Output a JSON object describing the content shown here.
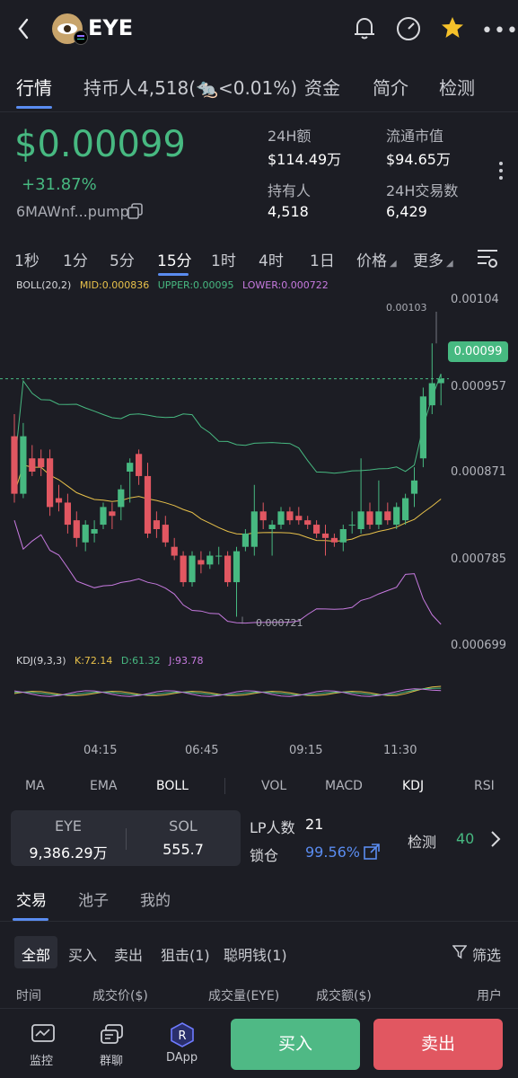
{
  "header": {
    "title": "EYE"
  },
  "tabs": [
    {
      "label": "行情"
    },
    {
      "label": "持币人4,518("
    },
    {
      "label": "<0.01%)"
    },
    {
      "label": "资金"
    },
    {
      "label": "简介"
    },
    {
      "label": "检测"
    }
  ],
  "token": {
    "price": "$0.00099",
    "change": "+31.87%",
    "address": "6MAWnf...pump"
  },
  "stats": {
    "vol24h_label": "24H额",
    "vol24h_value": "$114.49万",
    "mcap_label": "流通市值",
    "mcap_value": "$94.65万",
    "holders_label": "持有人",
    "holders_value": "4,518",
    "tx24h_label": "24H交易数",
    "tx24h_value": "6,429"
  },
  "intervals": [
    "1秒",
    "1分",
    "5分",
    "15分",
    "1时",
    "4时",
    "1日",
    "价格",
    "更多"
  ],
  "boll": {
    "name": "BOLL(20,2)",
    "mid": "MID:0.000836",
    "upper": "UPPER:0.00095",
    "lower": "LOWER:0.000722"
  },
  "price_axis": [
    "0.00104",
    "0.000957",
    "0.000871",
    "0.000785",
    "0.000699"
  ],
  "current_price_tag": "0.00099",
  "high_marker": "0.00103",
  "low_marker": "0.000721",
  "kdj": {
    "name": "KDJ(9,3,3)",
    "k": "K:72.14",
    "d": "D:61.32",
    "j": "J:93.78"
  },
  "time_axis": [
    "04:15",
    "06:45",
    "09:15",
    "11:30"
  ],
  "indicator_tabs": [
    "MA",
    "EMA",
    "BOLL",
    "VOL",
    "MACD",
    "KDJ",
    "RSI"
  ],
  "pool": {
    "token_label": "EYE",
    "token_amount": "9,386.29万",
    "sol_label": "SOL",
    "sol_amount": "555.7",
    "lp_label": "LP人数",
    "lp_value": "21",
    "lock_label": "锁仓",
    "lock_value": "99.56%",
    "check_label": "检测",
    "check_value": "40"
  },
  "bottom_tabs": [
    "交易",
    "池子",
    "我的"
  ],
  "filters": [
    "全部",
    "买入",
    "卖出",
    "狙击(1)",
    "聪明钱(1)"
  ],
  "filter_button": "筛选",
  "table_headers": [
    "时间",
    "成交价($)",
    "成交量(EYE)",
    "成交额($)",
    "用户"
  ],
  "nav": {
    "monitor": "监控",
    "group": "群聊",
    "dapp": "DApp",
    "buy": "买入",
    "sell": "卖出"
  },
  "chart_data": {
    "type": "candlestick",
    "interval": "15分",
    "ylim": [
      0.00069,
      0.00108
    ],
    "y_ticks": [
      0.00104,
      0.000957,
      0.000871,
      0.000785,
      0.000699
    ],
    "x_ticks": [
      "04:15",
      "06:45",
      "09:15",
      "11:30"
    ],
    "candles": [
      {
        "o": 0.000925,
        "h": 0.00095,
        "l": 0.00085,
        "c": 0.00086
      },
      {
        "o": 0.00086,
        "h": 0.00094,
        "l": 0.000855,
        "c": 0.000925
      },
      {
        "o": 0.0009,
        "h": 0.000915,
        "l": 0.00088,
        "c": 0.000885
      },
      {
        "o": 0.0009,
        "h": 0.00091,
        "l": 0.00088,
        "c": 0.00089
      },
      {
        "o": 0.0009,
        "h": 0.00091,
        "l": 0.000835,
        "c": 0.000845
      },
      {
        "o": 0.000855,
        "h": 0.00087,
        "l": 0.00084,
        "c": 0.00085
      },
      {
        "o": 0.00085,
        "h": 0.00086,
        "l": 0.000815,
        "c": 0.000825
      },
      {
        "o": 0.00083,
        "h": 0.00084,
        "l": 0.0008,
        "c": 0.00081
      },
      {
        "o": 0.000805,
        "h": 0.00083,
        "l": 0.000795,
        "c": 0.000825
      },
      {
        "o": 0.000815,
        "h": 0.00083,
        "l": 0.000805,
        "c": 0.00082
      },
      {
        "o": 0.000825,
        "h": 0.00085,
        "l": 0.00082,
        "c": 0.000845
      },
      {
        "o": 0.00084,
        "h": 0.00085,
        "l": 0.00082,
        "c": 0.000835
      },
      {
        "o": 0.000845,
        "h": 0.00087,
        "l": 0.00083,
        "c": 0.000865
      },
      {
        "o": 0.000885,
        "h": 0.0009,
        "l": 0.00085,
        "c": 0.000895
      },
      {
        "o": 0.000905,
        "h": 0.00091,
        "l": 0.00087,
        "c": 0.00088
      },
      {
        "o": 0.00088,
        "h": 0.000895,
        "l": 0.00081,
        "c": 0.000815
      },
      {
        "o": 0.00083,
        "h": 0.00084,
        "l": 0.00081,
        "c": 0.00082
      },
      {
        "o": 0.000825,
        "h": 0.000835,
        "l": 0.0008,
        "c": 0.000805
      },
      {
        "o": 0.0008,
        "h": 0.00081,
        "l": 0.000785,
        "c": 0.00079
      },
      {
        "o": 0.00079,
        "h": 0.000795,
        "l": 0.000755,
        "c": 0.00076
      },
      {
        "o": 0.00076,
        "h": 0.000795,
        "l": 0.000755,
        "c": 0.00079
      },
      {
        "o": 0.000785,
        "h": 0.000795,
        "l": 0.00077,
        "c": 0.00078
      },
      {
        "o": 0.00078,
        "h": 0.000795,
        "l": 0.000775,
        "c": 0.00079
      },
      {
        "o": 0.00079,
        "h": 0.0008,
        "l": 0.00078,
        "c": 0.00079
      },
      {
        "o": 0.00079,
        "h": 0.000795,
        "l": 0.000755,
        "c": 0.00076
      },
      {
        "o": 0.00076,
        "h": 0.0008,
        "l": 0.000721,
        "c": 0.000795
      },
      {
        "o": 0.0008,
        "h": 0.00082,
        "l": 0.000795,
        "c": 0.000815
      },
      {
        "o": 0.0008,
        "h": 0.00087,
        "l": 0.00079,
        "c": 0.00084
      },
      {
        "o": 0.00084,
        "h": 0.00085,
        "l": 0.00082,
        "c": 0.00083
      },
      {
        "o": 0.00082,
        "h": 0.00083,
        "l": 0.00079,
        "c": 0.000825
      },
      {
        "o": 0.000825,
        "h": 0.000845,
        "l": 0.00082,
        "c": 0.00084
      },
      {
        "o": 0.00084,
        "h": 0.000845,
        "l": 0.000825,
        "c": 0.00083
      },
      {
        "o": 0.000835,
        "h": 0.000845,
        "l": 0.000825,
        "c": 0.00083
      },
      {
        "o": 0.00083,
        "h": 0.000835,
        "l": 0.00082,
        "c": 0.000825
      },
      {
        "o": 0.000825,
        "h": 0.00083,
        "l": 0.00081,
        "c": 0.000815
      },
      {
        "o": 0.000815,
        "h": 0.000825,
        "l": 0.00079,
        "c": 0.00081
      },
      {
        "o": 0.00081,
        "h": 0.000815,
        "l": 0.0008,
        "c": 0.000805
      },
      {
        "o": 0.000805,
        "h": 0.000825,
        "l": 0.000795,
        "c": 0.00082
      },
      {
        "o": 0.000825,
        "h": 0.00084,
        "l": 0.000815,
        "c": 0.000825
      },
      {
        "o": 0.00082,
        "h": 0.0009,
        "l": 0.000815,
        "c": 0.00084
      },
      {
        "o": 0.00084,
        "h": 0.00085,
        "l": 0.00082,
        "c": 0.000825
      },
      {
        "o": 0.000825,
        "h": 0.000875,
        "l": 0.00082,
        "c": 0.00084
      },
      {
        "o": 0.00084,
        "h": 0.00085,
        "l": 0.000825,
        "c": 0.00083
      },
      {
        "o": 0.000825,
        "h": 0.00085,
        "l": 0.00082,
        "c": 0.000845
      },
      {
        "o": 0.00083,
        "h": 0.00086,
        "l": 0.000825,
        "c": 0.000855
      },
      {
        "o": 0.00086,
        "h": 0.00089,
        "l": 0.000845,
        "c": 0.000875
      },
      {
        "o": 0.0009,
        "h": 0.00098,
        "l": 0.00089,
        "c": 0.00097
      },
      {
        "o": 0.00096,
        "h": 0.00103,
        "l": 0.00095,
        "c": 0.000985
      },
      {
        "o": 0.000985,
        "h": 0.000995,
        "l": 0.00096,
        "c": 0.00099
      }
    ],
    "colors": {
      "up": "#47b981",
      "down": "#e15761",
      "mid": "#e8c14a",
      "upper": "#47b981",
      "lower": "#c77ae0"
    }
  }
}
